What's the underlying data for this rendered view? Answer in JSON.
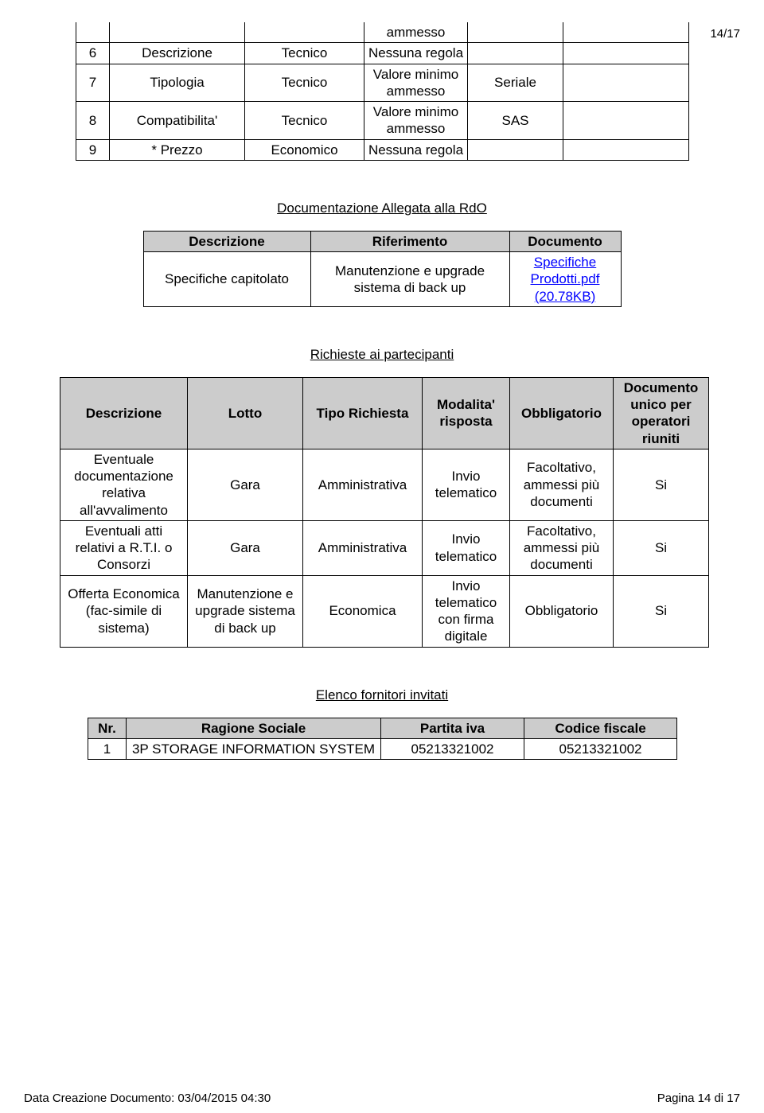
{
  "page_number": "14/17",
  "footer": {
    "left": "Data Creazione Documento: 03/04/2015 04:30",
    "right": "Pagina 14 di 17"
  },
  "table1": {
    "rows": [
      {
        "n": "",
        "desc": "",
        "cat": "",
        "rule": "ammesso",
        "val": "",
        "blank": ""
      },
      {
        "n": "6",
        "desc": "Descrizione",
        "cat": "Tecnico",
        "rule": "Nessuna regola",
        "val": "",
        "blank": ""
      },
      {
        "n": "7",
        "desc": "Tipologia",
        "cat": "Tecnico",
        "rule": "Valore minimo ammesso",
        "val": "Seriale",
        "blank": ""
      },
      {
        "n": "8",
        "desc": "Compatibilita'",
        "cat": "Tecnico",
        "rule": "Valore minimo ammesso",
        "val": "SAS",
        "blank": ""
      },
      {
        "n": "9",
        "desc": "* Prezzo",
        "cat": "Economico",
        "rule": "Nessuna regola",
        "val": "",
        "blank": ""
      }
    ]
  },
  "section_titles": {
    "s1": "Documentazione Allegata alla RdO",
    "s2": "Richieste ai partecipanti",
    "s3": "Elenco fornitori invitati"
  },
  "table2": {
    "headers": {
      "h1": "Descrizione",
      "h2": "Riferimento",
      "h3": "Documento"
    },
    "row": {
      "desc": "Specifiche capitolato",
      "rif": "Manutenzione e upgrade sistema di back up",
      "doc": "Specifiche Prodotti.pdf (20.78KB)"
    }
  },
  "table3": {
    "headers": {
      "h1": "Descrizione",
      "h2": "Lotto",
      "h3": "Tipo Richiesta",
      "h4": "Modalita' risposta",
      "h5": "Obbligatorio",
      "h6": "Documento unico per operatori riuniti"
    },
    "rows": [
      {
        "desc": "Eventuale documentazione relativa all'avvalimento",
        "lotto": "Gara",
        "tipo": "Amministrativa",
        "mod": "Invio telematico",
        "obb": "Facoltativo, ammessi più documenti",
        "doc": "Si"
      },
      {
        "desc": "Eventuali atti relativi a R.T.I. o Consorzi",
        "lotto": "Gara",
        "tipo": "Amministrativa",
        "mod": "Invio telematico",
        "obb": "Facoltativo, ammessi più documenti",
        "doc": "Si"
      },
      {
        "desc": "Offerta Economica (fac-simile di sistema)",
        "lotto": "Manutenzione e upgrade sistema di back up",
        "tipo": "Economica",
        "mod": "Invio telematico con firma digitale",
        "obb": "Obbligatorio",
        "doc": "Si"
      }
    ]
  },
  "table4": {
    "headers": {
      "h1": "Nr.",
      "h2": "Ragione Sociale",
      "h3": "Partita iva",
      "h4": "Codice fiscale"
    },
    "row": {
      "n": "1",
      "rs": "3P STORAGE INFORMATION SYSTEM",
      "piva": "05213321002",
      "cf": "05213321002"
    }
  },
  "colors": {
    "header_bg": "#cccccc",
    "link": "#0000ff",
    "text": "#000000",
    "border": "#000000",
    "background": "#ffffff"
  }
}
